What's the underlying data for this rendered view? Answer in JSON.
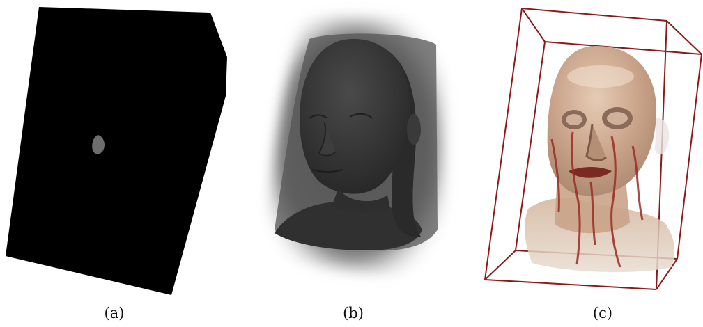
{
  "figure": {
    "panels": [
      {
        "id": "a",
        "caption": "(a)",
        "render": "black-volume-box",
        "colors": {
          "box": "#000000",
          "blob": "#6e6e6e"
        }
      },
      {
        "id": "b",
        "caption": "(b)",
        "render": "gray-mip-head",
        "colors": {
          "head": "#3c3c3c",
          "halo": "#8a8a8a"
        }
      },
      {
        "id": "c",
        "caption": "(c)",
        "render": "transparent-head-with-vessels",
        "colors": {
          "frame": "#8b1a1a",
          "skin": "#c9a488",
          "vessels": "#9a2b22"
        }
      }
    ]
  }
}
